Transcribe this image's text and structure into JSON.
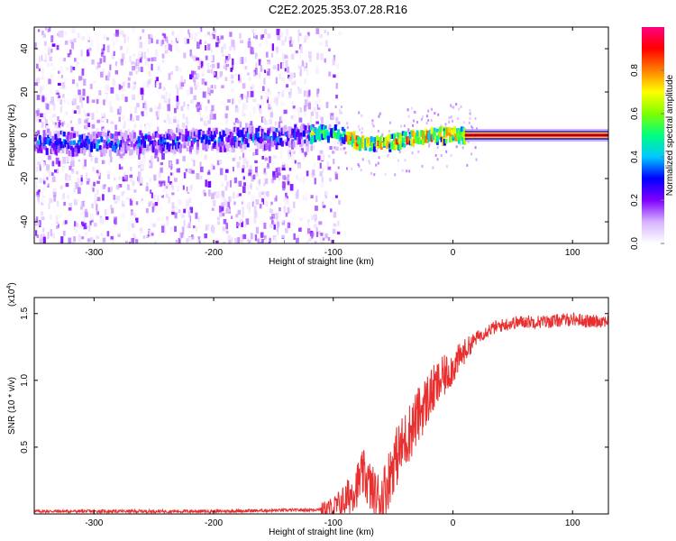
{
  "title": "C2E2.2025.353.07.28.R16",
  "colors": {
    "snr_line": "#e83030",
    "background": "#ffffff",
    "frame": "#000000"
  },
  "chart_data": [
    {
      "type": "heatmap",
      "name": "spectrogram",
      "xlabel": "Height of straight line (km)",
      "ylabel": "Frequency (Hz)",
      "xlim": [
        -350,
        130
      ],
      "ylim": [
        -50,
        50
      ],
      "xticks": [
        -300,
        -200,
        -100,
        0,
        100
      ],
      "xtick_labels": [
        "-300",
        "-200",
        "-100",
        "0",
        "100"
      ],
      "yticks": [
        -40,
        -20,
        0,
        20,
        40
      ],
      "ytick_labels": [
        "-40",
        "-20",
        "0",
        "20",
        "40"
      ],
      "ridge": [
        {
          "x": -350,
          "y": -3
        },
        {
          "x": -300,
          "y": -4
        },
        {
          "x": -250,
          "y": -3
        },
        {
          "x": -200,
          "y": -2
        },
        {
          "x": -150,
          "y": -1
        },
        {
          "x": -110,
          "y": 1
        },
        {
          "x": -100,
          "y": 1
        },
        {
          "x": -90,
          "y": -1
        },
        {
          "x": -80,
          "y": -3
        },
        {
          "x": -70,
          "y": -4
        },
        {
          "x": -60,
          "y": -4
        },
        {
          "x": -50,
          "y": -3
        },
        {
          "x": -40,
          "y": -2
        },
        {
          "x": -30,
          "y": -1
        },
        {
          "x": -20,
          "y": 0
        },
        {
          "x": -10,
          "y": 0
        },
        {
          "x": 0,
          "y": 0
        },
        {
          "x": 10,
          "y": 0
        },
        {
          "x": 130,
          "y": 0
        }
      ],
      "noise_extent_x": [
        -350,
        -100
      ],
      "colorbar": {
        "label": "Normalized spectral amplitude",
        "range": [
          0,
          1
        ],
        "ticks": [
          0.0,
          0.2,
          0.4,
          0.6,
          0.8
        ],
        "tick_labels": [
          "0.0",
          "0.2",
          "0.4",
          "0.6",
          "0.8"
        ],
        "colormap": [
          "#ffffff",
          "#d6b3ff",
          "#8000ff",
          "#0000ff",
          "#00c8ff",
          "#00ff80",
          "#80ff00",
          "#ffff00",
          "#ff8000",
          "#ff0000",
          "#ff0080"
        ]
      }
    },
    {
      "type": "line",
      "name": "snr",
      "xlabel": "Height of straight line (km)",
      "ylabel": "SNR (10 * v/v)",
      "y_multiplier_label": "(x10",
      "y_multiplier_exp": "4",
      "xlim": [
        -350,
        130
      ],
      "ylim": [
        0,
        1.62
      ],
      "xticks": [
        -300,
        -200,
        -100,
        0,
        100
      ],
      "xtick_labels": [
        "-300",
        "-200",
        "-100",
        "0",
        "100"
      ],
      "yticks": [
        0.5,
        1.0,
        1.5
      ],
      "ytick_labels": [
        "0.5",
        "1.0",
        "1.5"
      ],
      "x": [
        -350,
        -200,
        -120,
        -100,
        -90,
        -80,
        -75,
        -70,
        -65,
        -60,
        -55,
        -50,
        -40,
        -30,
        -20,
        -10,
        0,
        10,
        20,
        30,
        40,
        50,
        60,
        80,
        100,
        115,
        130
      ],
      "y": [
        0.02,
        0.02,
        0.03,
        0.04,
        0.1,
        0.22,
        0.3,
        0.22,
        0.12,
        0.12,
        0.22,
        0.38,
        0.55,
        0.72,
        0.88,
        1.0,
        1.1,
        1.22,
        1.32,
        1.38,
        1.41,
        1.43,
        1.44,
        1.44,
        1.46,
        1.44,
        1.45
      ]
    }
  ]
}
